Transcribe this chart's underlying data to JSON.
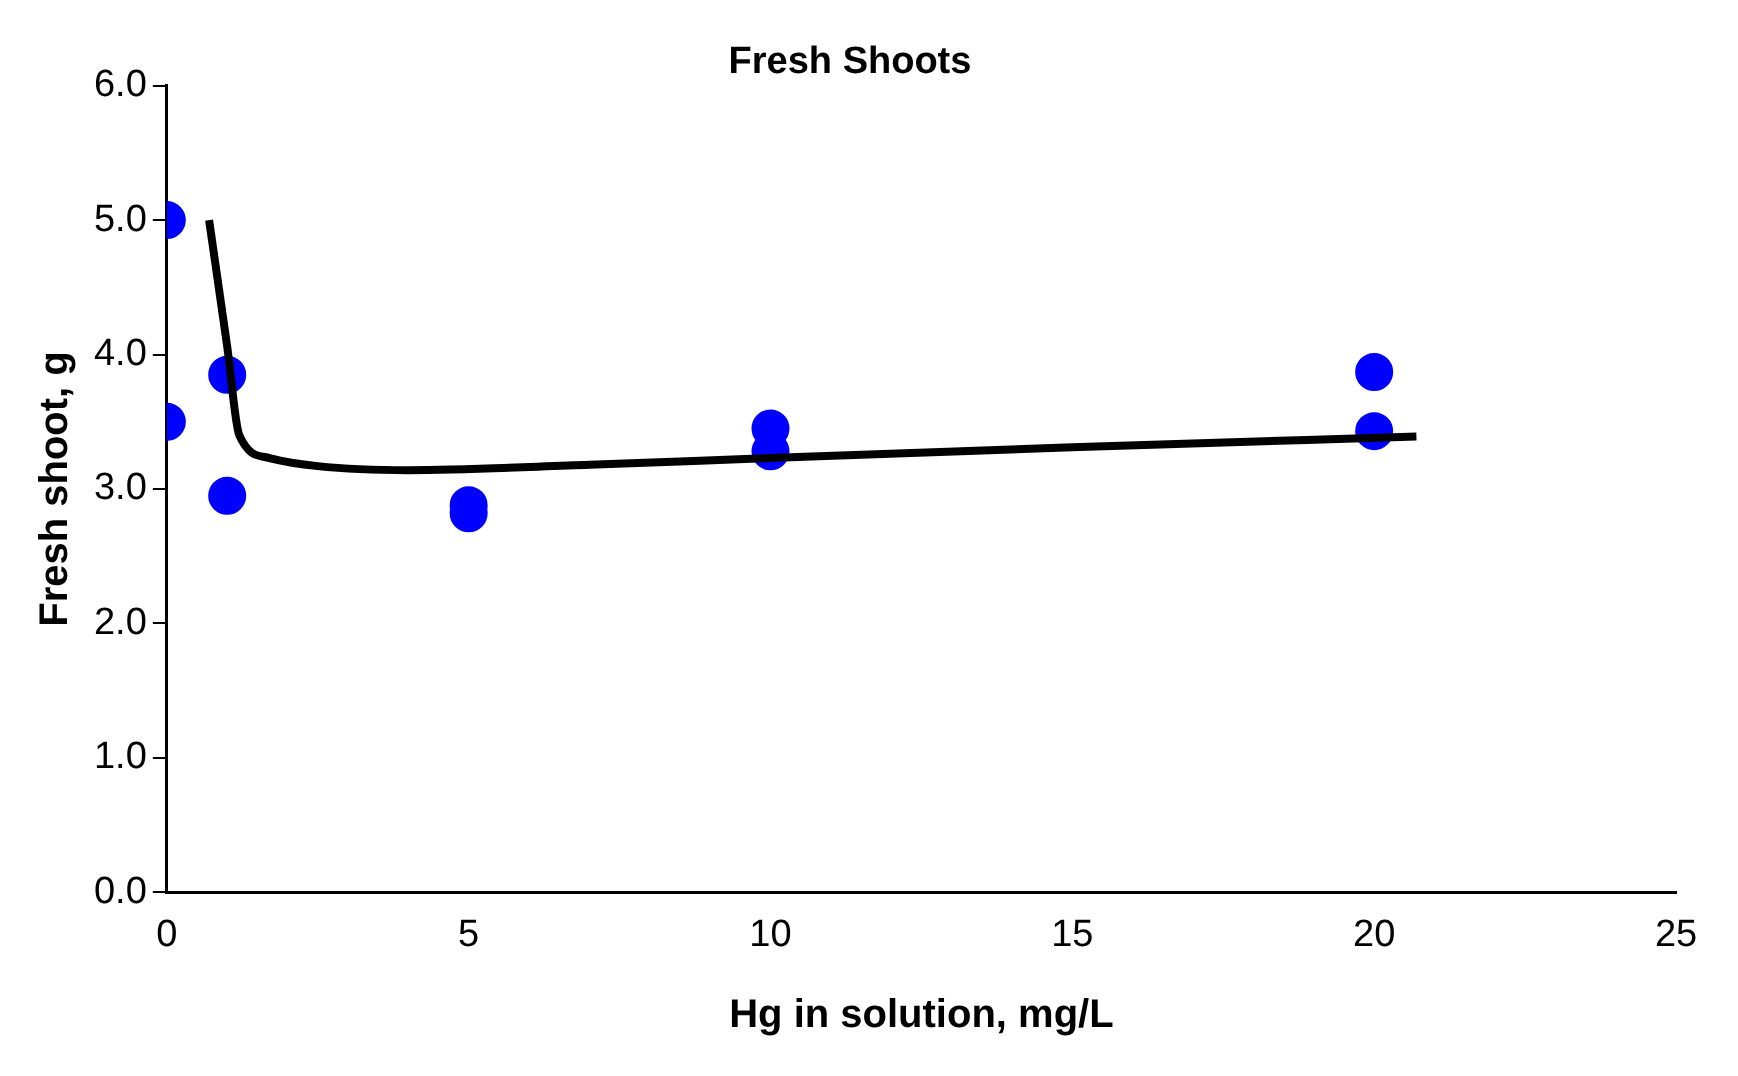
{
  "chart_data": {
    "type": "scatter",
    "title": "Fresh Shoots",
    "xlabel": "Hg in solution, mg/L",
    "ylabel": "Fresh shoot, g",
    "xlim": [
      0,
      25
    ],
    "xticks": [
      0,
      5,
      10,
      15,
      20,
      25
    ],
    "ylim": [
      0,
      6
    ],
    "yticks": [
      {
        "value": 0,
        "label": "0.0"
      },
      {
        "value": 1,
        "label": "1.0"
      },
      {
        "value": 2,
        "label": "2.0"
      },
      {
        "value": 3,
        "label": "3.0"
      },
      {
        "value": 4,
        "label": "4.0"
      },
      {
        "value": 5,
        "label": "5.0"
      },
      {
        "value": 6,
        "label": "6.0"
      }
    ],
    "grid": false,
    "legend": false,
    "marker": "circle",
    "series": [
      {
        "type": "scatter",
        "color": "#0000ff",
        "x": [
          0,
          0,
          1,
          1,
          5,
          5,
          10,
          10,
          20,
          20
        ],
        "values": [
          5.0,
          3.5,
          3.85,
          2.95,
          2.88,
          2.82,
          3.45,
          3.28,
          3.87,
          3.43
        ]
      },
      {
        "type": "line",
        "color": "#000000",
        "marker": "none",
        "line_style": "solid",
        "x": [
          0.7,
          1,
          1.2,
          1.7,
          2.5,
          4,
          7,
          10,
          15,
          20.7
        ],
        "values": [
          5.0,
          4.06,
          3.4,
          3.23,
          3.17,
          3.14,
          3.18,
          3.23,
          3.31,
          3.39
        ]
      }
    ]
  }
}
